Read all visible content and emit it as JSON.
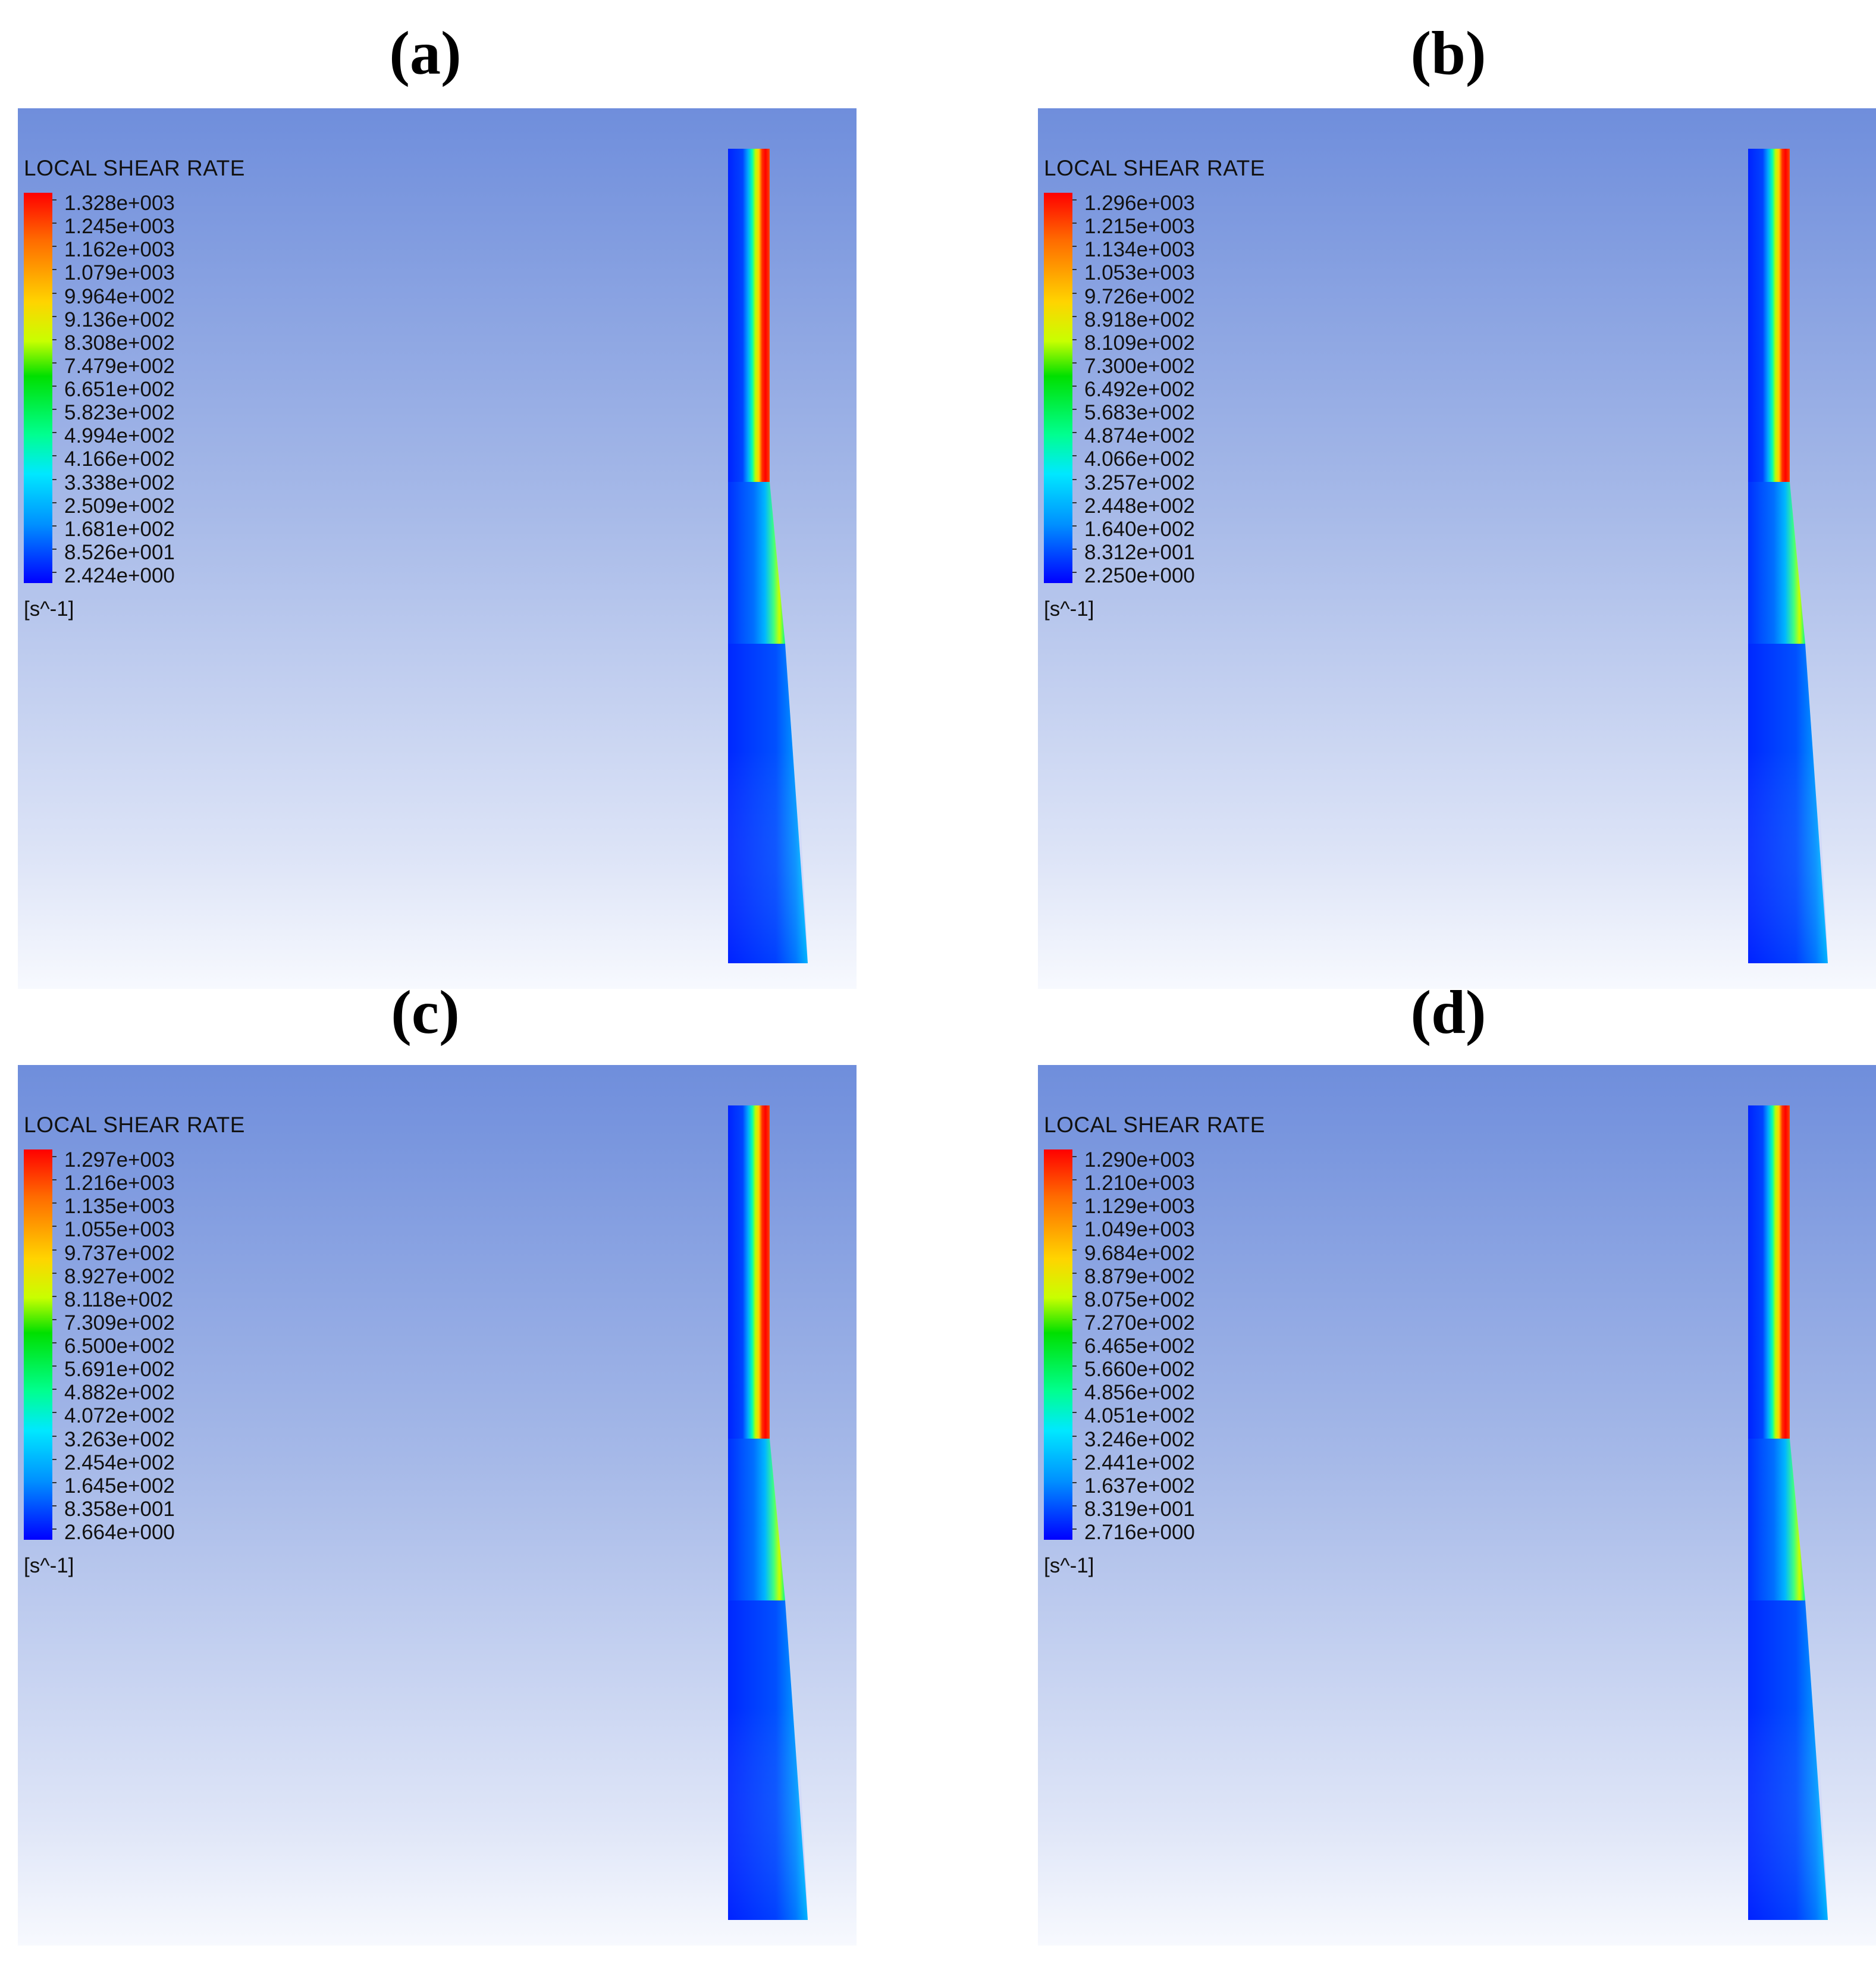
{
  "panels": [
    {
      "label": "(a)",
      "legend_title": "LOCAL SHEAR RATE",
      "unit": "[s^-1]",
      "ticks": [
        "1.328e+003",
        "1.245e+003",
        "1.162e+003",
        "1.079e+003",
        "9.964e+002",
        "9.136e+002",
        "8.308e+002",
        "7.479e+002",
        "6.651e+002",
        "5.823e+002",
        "4.994e+002",
        "4.166e+002",
        "3.338e+002",
        "2.509e+002",
        "1.681e+002",
        "8.526e+001",
        "2.424e+000"
      ]
    },
    {
      "label": "(b)",
      "legend_title": "LOCAL SHEAR RATE",
      "unit": "[s^-1]",
      "ticks": [
        "1.296e+003",
        "1.215e+003",
        "1.134e+003",
        "1.053e+003",
        "9.726e+002",
        "8.918e+002",
        "8.109e+002",
        "7.300e+002",
        "6.492e+002",
        "5.683e+002",
        "4.874e+002",
        "4.066e+002",
        "3.257e+002",
        "2.448e+002",
        "1.640e+002",
        "8.312e+001",
        "2.250e+000"
      ]
    },
    {
      "label": "(c)",
      "legend_title": "LOCAL SHEAR RATE",
      "unit": "[s^-1]",
      "ticks": [
        "1.297e+003",
        "1.216e+003",
        "1.135e+003",
        "1.055e+003",
        "9.737e+002",
        "8.927e+002",
        "8.118e+002",
        "7.309e+002",
        "6.500e+002",
        "5.691e+002",
        "4.882e+002",
        "4.072e+002",
        "3.263e+002",
        "2.454e+002",
        "1.645e+002",
        "8.358e+001",
        "2.664e+000"
      ]
    },
    {
      "label": "(d)",
      "legend_title": "LOCAL SHEAR RATE",
      "unit": "[s^-1]",
      "ticks": [
        "1.290e+003",
        "1.210e+003",
        "1.129e+003",
        "1.049e+003",
        "9.684e+002",
        "8.879e+002",
        "8.075e+002",
        "7.270e+002",
        "6.465e+002",
        "5.660e+002",
        "4.856e+002",
        "4.051e+002",
        "3.246e+002",
        "2.441e+002",
        "1.637e+002",
        "8.319e+001",
        "2.716e+000"
      ]
    }
  ],
  "colormap": [
    "#ff0000",
    "#ffd400",
    "#00e000",
    "#00e8ff",
    "#0000ff"
  ]
}
